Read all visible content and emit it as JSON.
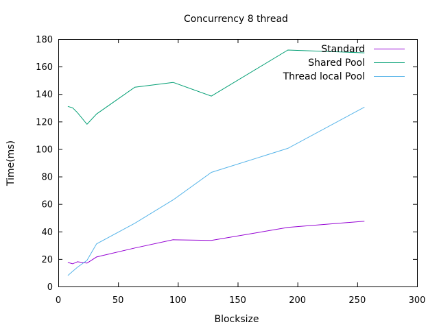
{
  "chart_data": {
    "type": "line",
    "title": "Concurrency 8 thread",
    "xlabel": "Blocksize",
    "ylabel": "Time(ms)",
    "xlim": [
      0,
      300
    ],
    "ylim": [
      0,
      180
    ],
    "xticks": [
      0,
      50,
      100,
      150,
      200,
      250,
      300
    ],
    "yticks": [
      0,
      20,
      40,
      60,
      80,
      100,
      120,
      140,
      160,
      180
    ],
    "grid": false,
    "legend": "top-right",
    "series": [
      {
        "name": "Standard",
        "color": "#9400d3",
        "x": [
          8,
          12,
          16,
          24,
          32,
          64,
          96,
          128,
          192,
          256
        ],
        "y": [
          17.5,
          16.5,
          18,
          17,
          21.5,
          28,
          34,
          33.5,
          43,
          47.5
        ]
      },
      {
        "name": "Shared Pool",
        "color": "#009e73",
        "x": [
          8,
          12,
          16,
          24,
          32,
          64,
          96,
          128,
          192,
          256
        ],
        "y": [
          131,
          130,
          126.5,
          118,
          125.5,
          145,
          148.5,
          138.5,
          172,
          170
        ]
      },
      {
        "name": "Thread local Pool",
        "color": "#56b4e9",
        "x": [
          8,
          12,
          16,
          24,
          32,
          64,
          96,
          128,
          192,
          256
        ],
        "y": [
          8,
          11,
          14,
          19,
          31,
          46,
          63,
          83,
          100.5,
          130.5
        ]
      }
    ]
  }
}
